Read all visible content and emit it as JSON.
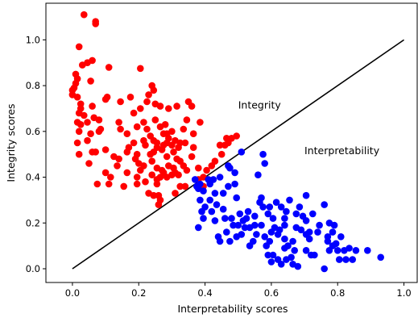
{
  "chart_data": {
    "type": "scatter",
    "xlabel": "Interpretability scores",
    "ylabel": "Integrity scores",
    "xlim": [
      -0.08,
      1.04
    ],
    "ylim": [
      -0.06,
      1.16
    ],
    "xticks": [
      "0.0",
      "0.2",
      "0.4",
      "0.6",
      "0.8",
      "1.0"
    ],
    "yticks": [
      "0.0",
      "0.2",
      "0.4",
      "0.6",
      "0.8",
      "1.0"
    ],
    "grid": false,
    "annotations": [
      {
        "text": "Integrity",
        "x": 0.5,
        "y": 0.7
      },
      {
        "text": "Interpretability",
        "x": 0.7,
        "y": 0.5
      }
    ],
    "reference_line": {
      "x": [
        0.0,
        1.0
      ],
      "y": [
        0.0,
        1.0
      ],
      "color": "#000000"
    },
    "series": [
      {
        "color": "#ff0000",
        "points": [
          [
            0.035,
            1.11
          ],
          [
            0.07,
            1.07
          ],
          [
            0.07,
            1.08
          ],
          [
            0.02,
            0.97
          ],
          [
            0.045,
            0.9
          ],
          [
            0.03,
            0.89
          ],
          [
            0.06,
            0.91
          ],
          [
            0.11,
            0.88
          ],
          [
            0.205,
            0.875
          ],
          [
            0.01,
            0.85
          ],
          [
            0.01,
            0.81
          ],
          [
            0.015,
            0.83
          ],
          [
            0.055,
            0.82
          ],
          [
            0.24,
            0.8
          ],
          [
            0.245,
            0.78
          ],
          [
            0.0,
            0.78
          ],
          [
            0.005,
            0.79
          ],
          [
            0.015,
            0.75
          ],
          [
            0.0,
            0.76
          ],
          [
            0.025,
            0.7
          ],
          [
            0.025,
            0.72
          ],
          [
            0.02,
            0.68
          ],
          [
            0.06,
            0.71
          ],
          [
            0.105,
            0.75
          ],
          [
            0.1,
            0.74
          ],
          [
            0.145,
            0.73
          ],
          [
            0.175,
            0.75
          ],
          [
            0.23,
            0.76
          ],
          [
            0.225,
            0.73
          ],
          [
            0.25,
            0.72
          ],
          [
            0.265,
            0.71
          ],
          [
            0.29,
            0.7
          ],
          [
            0.35,
            0.73
          ],
          [
            0.36,
            0.71
          ],
          [
            0.315,
            0.71
          ],
          [
            0.205,
            0.7
          ],
          [
            0.185,
            0.68
          ],
          [
            0.035,
            0.67
          ],
          [
            0.045,
            0.64
          ],
          [
            0.065,
            0.66
          ],
          [
            0.08,
            0.65
          ],
          [
            0.085,
            0.61
          ],
          [
            0.015,
            0.64
          ],
          [
            0.025,
            0.63
          ],
          [
            0.02,
            0.6
          ],
          [
            0.055,
            0.59
          ],
          [
            0.045,
            0.56
          ],
          [
            0.08,
            0.6
          ],
          [
            0.14,
            0.64
          ],
          [
            0.145,
            0.61
          ],
          [
            0.165,
            0.59
          ],
          [
            0.195,
            0.62
          ],
          [
            0.215,
            0.64
          ],
          [
            0.25,
            0.65
          ],
          [
            0.265,
            0.62
          ],
          [
            0.28,
            0.63
          ],
          [
            0.225,
            0.61
          ],
          [
            0.235,
            0.58
          ],
          [
            0.245,
            0.56
          ],
          [
            0.275,
            0.59
          ],
          [
            0.29,
            0.57
          ],
          [
            0.3,
            0.6
          ],
          [
            0.31,
            0.56
          ],
          [
            0.325,
            0.55
          ],
          [
            0.335,
            0.61
          ],
          [
            0.345,
            0.65
          ],
          [
            0.365,
            0.59
          ],
          [
            0.385,
            0.64
          ],
          [
            0.34,
            0.55
          ],
          [
            0.32,
            0.53
          ],
          [
            0.3,
            0.54
          ],
          [
            0.305,
            0.51
          ],
          [
            0.285,
            0.55
          ],
          [
            0.275,
            0.54
          ],
          [
            0.27,
            0.52
          ],
          [
            0.255,
            0.53
          ],
          [
            0.245,
            0.51
          ],
          [
            0.235,
            0.5
          ],
          [
            0.22,
            0.54
          ],
          [
            0.215,
            0.56
          ],
          [
            0.185,
            0.55
          ],
          [
            0.17,
            0.53
          ],
          [
            0.165,
            0.51
          ],
          [
            0.195,
            0.5
          ],
          [
            0.015,
            0.55
          ],
          [
            0.02,
            0.5
          ],
          [
            0.06,
            0.51
          ],
          [
            0.07,
            0.51
          ],
          [
            0.1,
            0.52
          ],
          [
            0.125,
            0.49
          ],
          [
            0.14,
            0.48
          ],
          [
            0.135,
            0.45
          ],
          [
            0.05,
            0.46
          ],
          [
            0.19,
            0.48
          ],
          [
            0.2,
            0.46
          ],
          [
            0.215,
            0.45
          ],
          [
            0.24,
            0.47
          ],
          [
            0.255,
            0.44
          ],
          [
            0.27,
            0.43
          ],
          [
            0.285,
            0.49
          ],
          [
            0.29,
            0.45
          ],
          [
            0.305,
            0.44
          ],
          [
            0.315,
            0.48
          ],
          [
            0.325,
            0.47
          ],
          [
            0.335,
            0.45
          ],
          [
            0.345,
            0.43
          ],
          [
            0.31,
            0.42
          ],
          [
            0.3,
            0.41
          ],
          [
            0.32,
            0.41
          ],
          [
            0.285,
            0.4
          ],
          [
            0.265,
            0.4
          ],
          [
            0.255,
            0.39
          ],
          [
            0.24,
            0.41
          ],
          [
            0.205,
            0.43
          ],
          [
            0.195,
            0.4
          ],
          [
            0.195,
            0.37
          ],
          [
            0.165,
            0.42
          ],
          [
            0.1,
            0.42
          ],
          [
            0.115,
            0.4
          ],
          [
            0.11,
            0.37
          ],
          [
            0.075,
            0.37
          ],
          [
            0.155,
            0.36
          ],
          [
            0.23,
            0.33
          ],
          [
            0.245,
            0.32
          ],
          [
            0.26,
            0.32
          ],
          [
            0.265,
            0.3
          ],
          [
            0.26,
            0.28
          ],
          [
            0.31,
            0.33
          ],
          [
            0.325,
            0.36
          ],
          [
            0.34,
            0.36
          ],
          [
            0.38,
            0.39
          ],
          [
            0.395,
            0.4
          ],
          [
            0.405,
            0.43
          ],
          [
            0.42,
            0.45
          ],
          [
            0.43,
            0.47
          ],
          [
            0.45,
            0.5
          ],
          [
            0.48,
            0.57
          ],
          [
            0.465,
            0.57
          ],
          [
            0.47,
            0.55
          ],
          [
            0.495,
            0.58
          ],
          [
            0.46,
            0.54
          ],
          [
            0.445,
            0.54
          ],
          [
            0.365,
            0.53
          ],
          [
            0.36,
            0.49
          ],
          [
            0.38,
            0.44
          ],
          [
            0.395,
            0.36
          ],
          [
            0.275,
            0.42
          ],
          [
            0.255,
            0.37
          ],
          [
            0.22,
            0.38
          ],
          [
            0.285,
            0.59
          ],
          [
            0.255,
            0.55
          ]
        ]
      },
      {
        "color": "#0000ff",
        "points": [
          [
            0.51,
            0.51
          ],
          [
            0.575,
            0.5
          ],
          [
            0.47,
            0.45
          ],
          [
            0.475,
            0.44
          ],
          [
            0.49,
            0.42
          ],
          [
            0.56,
            0.41
          ],
          [
            0.58,
            0.46
          ],
          [
            0.445,
            0.4
          ],
          [
            0.425,
            0.39
          ],
          [
            0.41,
            0.39
          ],
          [
            0.37,
            0.39
          ],
          [
            0.385,
            0.37
          ],
          [
            0.375,
            0.36
          ],
          [
            0.395,
            0.34
          ],
          [
            0.38,
            0.35
          ],
          [
            0.415,
            0.37
          ],
          [
            0.43,
            0.33
          ],
          [
            0.47,
            0.36
          ],
          [
            0.49,
            0.37
          ],
          [
            0.455,
            0.33
          ],
          [
            0.495,
            0.31
          ],
          [
            0.415,
            0.3
          ],
          [
            0.385,
            0.3
          ],
          [
            0.4,
            0.27
          ],
          [
            0.42,
            0.25
          ],
          [
            0.39,
            0.25
          ],
          [
            0.395,
            0.22
          ],
          [
            0.38,
            0.18
          ],
          [
            0.43,
            0.21
          ],
          [
            0.435,
            0.28
          ],
          [
            0.455,
            0.26
          ],
          [
            0.46,
            0.22
          ],
          [
            0.48,
            0.22
          ],
          [
            0.505,
            0.24
          ],
          [
            0.515,
            0.21
          ],
          [
            0.525,
            0.22
          ],
          [
            0.53,
            0.25
          ],
          [
            0.55,
            0.23
          ],
          [
            0.565,
            0.29
          ],
          [
            0.57,
            0.31
          ],
          [
            0.575,
            0.27
          ],
          [
            0.595,
            0.27
          ],
          [
            0.59,
            0.24
          ],
          [
            0.605,
            0.22
          ],
          [
            0.615,
            0.29
          ],
          [
            0.63,
            0.27
          ],
          [
            0.645,
            0.25
          ],
          [
            0.655,
            0.3
          ],
          [
            0.675,
            0.24
          ],
          [
            0.685,
            0.27
          ],
          [
            0.695,
            0.23
          ],
          [
            0.705,
            0.21
          ],
          [
            0.725,
            0.24
          ],
          [
            0.745,
            0.19
          ],
          [
            0.76,
            0.28
          ],
          [
            0.775,
            0.2
          ],
          [
            0.785,
            0.16
          ],
          [
            0.795,
            0.11
          ],
          [
            0.8,
            0.08
          ],
          [
            0.775,
            0.08
          ],
          [
            0.77,
            0.14
          ],
          [
            0.79,
            0.19
          ],
          [
            0.77,
            0.12
          ],
          [
            0.805,
            0.04
          ],
          [
            0.825,
            0.04
          ],
          [
            0.835,
            0.09
          ],
          [
            0.845,
            0.04
          ],
          [
            0.855,
            0.08
          ],
          [
            0.89,
            0.08
          ],
          [
            0.93,
            0.05
          ],
          [
            0.705,
            0.32
          ],
          [
            0.64,
            0.19
          ],
          [
            0.625,
            0.17
          ],
          [
            0.61,
            0.18
          ],
          [
            0.6,
            0.16
          ],
          [
            0.595,
            0.12
          ],
          [
            0.585,
            0.1
          ],
          [
            0.58,
            0.14
          ],
          [
            0.555,
            0.15
          ],
          [
            0.545,
            0.12
          ],
          [
            0.535,
            0.1
          ],
          [
            0.51,
            0.15
          ],
          [
            0.495,
            0.14
          ],
          [
            0.465,
            0.16
          ],
          [
            0.44,
            0.14
          ],
          [
            0.445,
            0.12
          ],
          [
            0.475,
            0.12
          ],
          [
            0.535,
            0.18
          ],
          [
            0.55,
            0.19
          ],
          [
            0.52,
            0.18
          ],
          [
            0.5,
            0.19
          ],
          [
            0.485,
            0.19
          ],
          [
            0.64,
            0.13
          ],
          [
            0.65,
            0.1
          ],
          [
            0.64,
            0.09
          ],
          [
            0.665,
            0.12
          ],
          [
            0.67,
            0.08
          ],
          [
            0.66,
            0.05
          ],
          [
            0.645,
            0.04
          ],
          [
            0.62,
            0.04
          ],
          [
            0.605,
            0.06
          ],
          [
            0.63,
            0.02
          ],
          [
            0.665,
            0.02
          ],
          [
            0.68,
            0.01
          ],
          [
            0.705,
            0.08
          ],
          [
            0.72,
            0.06
          ],
          [
            0.73,
            0.06
          ],
          [
            0.715,
            0.13
          ],
          [
            0.74,
            0.16
          ],
          [
            0.715,
            0.16
          ],
          [
            0.69,
            0.17
          ],
          [
            0.675,
            0.18
          ],
          [
            0.705,
            0.15
          ],
          [
            0.6,
            0.03
          ],
          [
            0.59,
            0.06
          ],
          [
            0.76,
            0.0
          ],
          [
            0.785,
            0.1
          ],
          [
            0.81,
            0.14
          ],
          [
            0.82,
            0.08
          ],
          [
            0.64,
            0.22
          ],
          [
            0.62,
            0.15
          ],
          [
            0.57,
            0.19
          ]
        ]
      }
    ]
  }
}
